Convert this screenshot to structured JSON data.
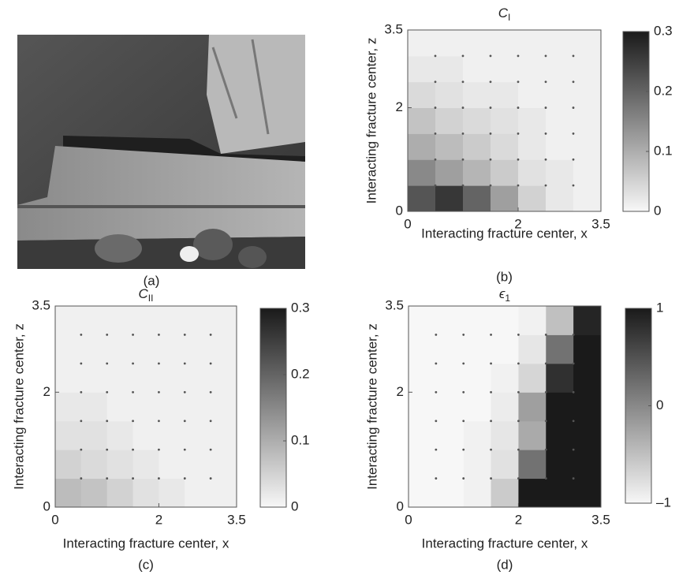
{
  "panel_a": {
    "caption": "(a)"
  },
  "chart_data": [
    {
      "type": "heatmap",
      "title": "C",
      "title_subscript": "I",
      "xlabel": "Interacting fracture center, x",
      "ylabel": "Interacting fracture center, z",
      "caption": "(b)",
      "xlim": [
        0,
        3.5
      ],
      "ylim": [
        0,
        3.5
      ],
      "xticks": [
        0,
        2,
        3.5
      ],
      "yticks": [
        0,
        2,
        3.5
      ],
      "x": [
        0.25,
        0.75,
        1.25,
        1.75,
        2.25,
        2.75,
        3.25
      ],
      "z": [
        0.25,
        0.75,
        1.25,
        1.75,
        2.25,
        2.75,
        3.25
      ],
      "values": [
        [
          0.22,
          0.26,
          0.2,
          0.12,
          0.05,
          0.02,
          0.01
        ],
        [
          0.15,
          0.12,
          0.09,
          0.06,
          0.03,
          0.02,
          0.01
        ],
        [
          0.1,
          0.08,
          0.06,
          0.04,
          0.02,
          0.01,
          0.01
        ],
        [
          0.07,
          0.05,
          0.04,
          0.03,
          0.02,
          0.01,
          0.01
        ],
        [
          0.04,
          0.03,
          0.02,
          0.02,
          0.01,
          0.01,
          0.01
        ],
        [
          0.02,
          0.02,
          0.01,
          0.01,
          0.01,
          0.01,
          0.01
        ],
        [
          0.01,
          0.01,
          0.01,
          0.01,
          0.01,
          0.01,
          0.01
        ]
      ],
      "clim": [
        0,
        0.3
      ],
      "cticks": [
        0,
        0.1,
        0.2,
        0.3
      ],
      "color_low": "#f7f7f7",
      "color_high": "#1a1a1a",
      "points": {
        "x": [
          0.5,
          1,
          1.5,
          2,
          2.5,
          3
        ],
        "z": [
          0.5,
          1,
          1.5,
          2,
          2.5,
          3
        ]
      }
    },
    {
      "type": "heatmap",
      "title": "C",
      "title_subscript": "II",
      "xlabel": "Interacting fracture center, x",
      "ylabel": "Interacting fracture center, z",
      "caption": "(c)",
      "xlim": [
        0,
        3.5
      ],
      "ylim": [
        0,
        3.5
      ],
      "xticks": [
        0,
        2,
        3.5
      ],
      "yticks": [
        0,
        2,
        3.5
      ],
      "x": [
        0.25,
        0.75,
        1.25,
        1.75,
        2.25,
        2.75,
        3.25
      ],
      "z": [
        0.25,
        0.75,
        1.25,
        1.75,
        2.25,
        2.75,
        3.25
      ],
      "values": [
        [
          0.08,
          0.07,
          0.05,
          0.03,
          0.02,
          0.01,
          0.01
        ],
        [
          0.05,
          0.04,
          0.03,
          0.02,
          0.01,
          0.01,
          0.01
        ],
        [
          0.03,
          0.03,
          0.02,
          0.01,
          0.01,
          0.01,
          0.01
        ],
        [
          0.02,
          0.02,
          0.01,
          0.01,
          0.01,
          0.01,
          0.01
        ],
        [
          0.01,
          0.01,
          0.01,
          0.01,
          0.01,
          0.01,
          0.01
        ],
        [
          0.01,
          0.01,
          0.01,
          0.01,
          0.01,
          0.01,
          0.01
        ],
        [
          0.01,
          0.01,
          0.01,
          0.01,
          0.01,
          0.01,
          0.01
        ]
      ],
      "clim": [
        0,
        0.3
      ],
      "cticks": [
        0,
        0.1,
        0.2,
        0.3
      ],
      "color_low": "#f7f7f7",
      "color_high": "#1a1a1a",
      "points": {
        "x": [
          0.5,
          1,
          1.5,
          2,
          2.5,
          3
        ],
        "z": [
          0.5,
          1,
          1.5,
          2,
          2.5,
          3
        ]
      }
    },
    {
      "type": "heatmap",
      "title": "ϵ",
      "title_subscript": "1",
      "xlabel": "Interacting fracture center, x",
      "ylabel": "Interacting fracture center, z",
      "caption": "(d)",
      "xlim": [
        0,
        3.5
      ],
      "ylim": [
        0,
        3.5
      ],
      "xticks": [
        0,
        2,
        3.5
      ],
      "yticks": [
        0,
        2,
        3.5
      ],
      "x": [
        0.25,
        0.75,
        1.25,
        1.75,
        2.25,
        2.75,
        3.25
      ],
      "z": [
        0.25,
        0.75,
        1.25,
        1.75,
        2.25,
        2.75,
        3.25
      ],
      "values": [
        [
          -1,
          -1,
          -0.95,
          -0.6,
          1,
          1,
          1
        ],
        [
          -1,
          -1,
          -0.95,
          -0.8,
          0.2,
          1,
          1
        ],
        [
          -1,
          -1,
          -0.95,
          -0.85,
          -0.3,
          1,
          1
        ],
        [
          -1,
          -1,
          -1,
          -0.9,
          -0.2,
          1,
          1
        ],
        [
          -1,
          -1,
          -1,
          -0.95,
          -0.7,
          0.8,
          1
        ],
        [
          -1,
          -1,
          -1,
          -1,
          -0.85,
          0.2,
          1
        ],
        [
          -1,
          -1,
          -1,
          -1,
          -0.95,
          -0.5,
          0.9
        ]
      ],
      "clim": [
        -1,
        1
      ],
      "cticks": [
        {
          "value": -1,
          "label": "–1"
        },
        0,
        1
      ],
      "color_low": "#f7f7f7",
      "color_high": "#1a1a1a",
      "points": {
        "x": [
          0.5,
          1,
          1.5,
          2,
          2.5,
          3
        ],
        "z": [
          0.5,
          1,
          1.5,
          2,
          2.5,
          3
        ]
      }
    }
  ]
}
